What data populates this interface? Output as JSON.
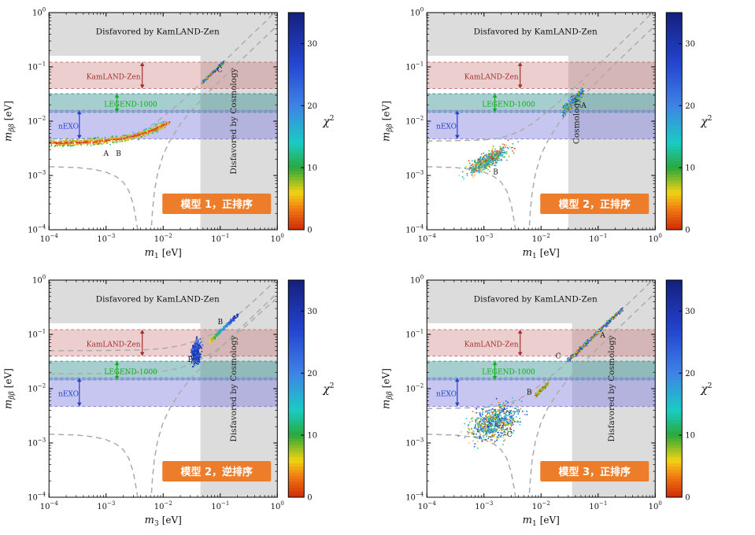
{
  "chart_data": {
    "type": "scatter",
    "description": "2x2 grid of log-log scatter plots of effective Majorana mass vs lightest neutrino mass, colored by chi-squared",
    "shared": {
      "axes": {
        "x_min": 0.0001,
        "x_max": 1,
        "y_min": 0.0001,
        "y_max": 1,
        "x_tick_exponents": [
          -4,
          -3,
          -2,
          -1,
          0
        ],
        "y_tick_exponents": [
          -4,
          -3,
          -2,
          -1,
          0
        ]
      },
      "ylabel": {
        "var": "m",
        "sub": "ββ",
        "unit": "[eV]"
      },
      "top_region": {
        "y_min": 0.16,
        "y_max": 1.0,
        "fill": "#dcdcdc",
        "label": "Disfavored by KamLAND-Zen",
        "label_x": 0.008,
        "label_y": 0.4
      },
      "cosmology_fill": "#dcdcdc",
      "bands": [
        {
          "id": "kamland-zen",
          "label": "KamLAND-Zen",
          "y_min": 0.04,
          "y_max": 0.122,
          "fill": "#c96a6a",
          "fill_opacity": 0.33,
          "edge": "#b96a6a",
          "label_color": "#a03030",
          "label_x": 0.00135,
          "label_y": 0.066,
          "arrow_x": 0.0043
        },
        {
          "id": "legend-1000",
          "label": "LEGEND-1000",
          "y_min": 0.0145,
          "y_max": 0.032,
          "fill": "#2e8b8b",
          "fill_opacity": 0.42,
          "edge": "#2e8b8b",
          "label_color": "#0cae1e",
          "label_x": 0.0027,
          "label_y": 0.0205,
          "arrow_x": 0.00155
        },
        {
          "id": "nexo",
          "label": "nEXO",
          "y_min": 0.0047,
          "y_max": 0.0158,
          "fill": "#8080dd",
          "fill_opacity": 0.45,
          "edge": "#7878cf",
          "label_color": "#2543cc",
          "label_x": 0.00022,
          "label_y": 0.008,
          "arrow_x": 0.00034
        }
      ],
      "curve_style": {
        "color": "#ababab",
        "dash": "7 5",
        "width": 1.5
      },
      "curves_lib": {
        "no_upper": [
          [
            0.0001,
            0.0043
          ],
          [
            0.0003,
            0.00435
          ],
          [
            0.001,
            0.0045
          ],
          [
            0.002,
            0.0049
          ],
          [
            0.004,
            0.0063
          ],
          [
            0.007,
            0.009
          ],
          [
            0.01,
            0.012
          ],
          [
            0.02,
            0.022
          ],
          [
            0.04,
            0.043
          ],
          [
            0.08,
            0.086
          ],
          [
            0.15,
            0.162
          ],
          [
            0.3,
            0.33
          ],
          [
            0.6,
            0.66
          ],
          [
            0.93,
            1.05
          ]
        ],
        "no_funnel_left": [
          [
            0.0001,
            0.00145
          ],
          [
            0.0003,
            0.0014
          ],
          [
            0.0006,
            0.0013
          ],
          [
            0.001,
            0.00115
          ],
          [
            0.0015,
            0.00095
          ],
          [
            0.002,
            0.00075
          ],
          [
            0.0025,
            0.00052
          ],
          [
            0.003,
            0.00029
          ],
          [
            0.0034,
            0.00014
          ],
          [
            0.0037,
            8e-05
          ]
        ],
        "no_funnel_right": [
          [
            0.0061,
            8e-05
          ],
          [
            0.0065,
            0.00022
          ],
          [
            0.007,
            0.0005
          ],
          [
            0.008,
            0.0011
          ],
          [
            0.01,
            0.0024
          ],
          [
            0.013,
            0.0043
          ],
          [
            0.02,
            0.0088
          ],
          [
            0.03,
            0.015
          ],
          [
            0.05,
            0.027
          ],
          [
            0.1,
            0.056
          ],
          [
            0.2,
            0.115
          ],
          [
            0.4,
            0.23
          ],
          [
            1,
            0.58
          ]
        ],
        "io_upper": [
          [
            0.0001,
            0.05
          ],
          [
            0.001,
            0.0505
          ],
          [
            0.005,
            0.052
          ],
          [
            0.01,
            0.055
          ],
          [
            0.02,
            0.062
          ],
          [
            0.04,
            0.077
          ],
          [
            0.08,
            0.106
          ],
          [
            0.15,
            0.172
          ],
          [
            0.3,
            0.325
          ],
          [
            0.6,
            0.63
          ],
          [
            0.95,
            1.02
          ]
        ],
        "io_lower": [
          [
            0.0001,
            0.0188
          ],
          [
            0.001,
            0.019
          ],
          [
            0.005,
            0.0196
          ],
          [
            0.01,
            0.021
          ],
          [
            0.02,
            0.024
          ],
          [
            0.04,
            0.032
          ],
          [
            0.08,
            0.049
          ],
          [
            0.15,
            0.081
          ],
          [
            0.3,
            0.152
          ],
          [
            0.6,
            0.295
          ],
          [
            1,
            0.47
          ]
        ]
      },
      "colorbar": {
        "label": "χ",
        "sup": "2",
        "min": 0,
        "max": 35,
        "ticks": [
          0,
          10,
          20,
          30
        ],
        "stops": [
          [
            0,
            "#cc2b04"
          ],
          [
            3,
            "#ef7012"
          ],
          [
            6,
            "#f2d313"
          ],
          [
            10,
            "#2aa83a"
          ],
          [
            14,
            "#19ccc4"
          ],
          [
            20,
            "#3f83e6"
          ],
          [
            27,
            "#2344cf"
          ],
          [
            35,
            "#15207d"
          ]
        ]
      },
      "badge_color": "#ed7d2a",
      "badge_text_color": "#ffffff"
    },
    "panels": [
      {
        "badge": "模型 1，正排序",
        "x_sub": "1",
        "cosmology": {
          "x_start": 0.045,
          "label": "Disfavored by Cosmology",
          "label_x": 0.19
        },
        "curves": [
          "no_upper",
          "no_funnel_left",
          "no_funnel_right"
        ],
        "clusters": [
          {
            "type": "band",
            "n": 650,
            "seed": 11,
            "x_min": 0.0001,
            "x_max": 0.013,
            "y0": 0.0039,
            "slope": 0.45,
            "spread": 0.032,
            "chi2": [
              0,
              16
            ],
            "mode": "edge"
          },
          {
            "type": "streak",
            "n": 200,
            "seed": 12,
            "x_min": 0.048,
            "x_max": 0.115,
            "k": 1.06,
            "spread": 0.013,
            "chi2": [
              0,
              33
            ],
            "mode": "uniform"
          }
        ],
        "annotations": [
          {
            "text": "A",
            "x": 0.001,
            "y": 0.0023
          },
          {
            "text": "B",
            "x": 0.00165,
            "y": 0.0023
          },
          {
            "text": "C",
            "x": 0.098,
            "y": 0.08
          }
        ]
      },
      {
        "badge": "模型 2，正排序",
        "x_sub": "1",
        "cosmology": {
          "x_start": 0.03,
          "label": "Cosmology",
          "label_x": 0.046
        },
        "curves": [
          "no_upper",
          "no_funnel_left",
          "no_funnel_right"
        ],
        "clusters": [
          {
            "type": "blob",
            "n": 620,
            "seed": 21,
            "cx": -2.93,
            "cy": -2.72,
            "sx": 0.17,
            "sy": 0.07,
            "tilt": 0.55,
            "chi2": [
              0,
              22
            ],
            "mode": "uniform"
          },
          {
            "type": "streak",
            "n": 300,
            "seed": 22,
            "x_min": 0.024,
            "x_max": 0.056,
            "k": 0.62,
            "spread": 0.05,
            "chi2": [
              0,
              28
            ],
            "mode": "uniform"
          }
        ],
        "annotations": [
          {
            "text": "B",
            "x": 0.0016,
            "y": 0.00105
          },
          {
            "text": "A",
            "x": 0.056,
            "y": 0.0175
          }
        ]
      },
      {
        "badge": "模型 2，逆排序",
        "x_sub": "3",
        "cosmology": {
          "x_start": 0.045,
          "label": "Disfavored by Cosmology",
          "label_x": 0.19
        },
        "curves": [
          "io_upper",
          "io_lower",
          "no_funnel_left",
          "no_funnel_right"
        ],
        "clusters": [
          {
            "type": "blob",
            "n": 430,
            "seed": 31,
            "cx": -1.42,
            "cy": -1.33,
            "sx": 0.04,
            "sy": 0.1,
            "tilt": 0.5,
            "chi2": [
              20,
              34
            ],
            "mode": "uniform"
          },
          {
            "type": "streak",
            "n": 270,
            "seed": 32,
            "x_min": 0.065,
            "x_max": 0.205,
            "k": 1.13,
            "spread": 0.018,
            "chi2": [
              6,
              32
            ],
            "mode": "gradient"
          }
        ],
        "annotations": [
          {
            "text": "B",
            "x": 0.03,
            "y": 0.031
          },
          {
            "text": "B",
            "x": 0.1,
            "y": 0.155
          }
        ]
      },
      {
        "badge": "模型 3，正排序",
        "x_sub": "1",
        "cosmology": {
          "x_start": 0.035,
          "label": "Disfavored by Cosmology",
          "label_x": 0.19
        },
        "curves": [
          "no_upper",
          "no_funnel_left",
          "no_funnel_right"
        ],
        "clusters": [
          {
            "type": "blob",
            "n": 780,
            "seed": 41,
            "cx": -2.82,
            "cy": -2.62,
            "sx": 0.21,
            "sy": 0.15,
            "tilt": 0.3,
            "chi2": [
              2,
              30
            ],
            "mode": "uniform"
          },
          {
            "type": "streak",
            "n": 120,
            "seed": 42,
            "x_min": 0.008,
            "x_max": 0.0135,
            "k": 0.93,
            "spread": 0.02,
            "chi2": [
              0,
              12
            ],
            "mode": "uniform"
          },
          {
            "type": "streak",
            "n": 400,
            "seed": 43,
            "x_min": 0.029,
            "x_max": 0.27,
            "k": 1.1,
            "spread": 0.02,
            "chi2": [
              0,
              32
            ],
            "mode": "uniform"
          }
        ],
        "annotations": [
          {
            "text": "C",
            "x": 0.0028,
            "y": 0.0013
          },
          {
            "text": "B",
            "x": 0.0062,
            "y": 0.0078
          },
          {
            "text": "C",
            "x": 0.02,
            "y": 0.036
          },
          {
            "text": "A",
            "x": 0.12,
            "y": 0.088
          }
        ]
      }
    ]
  }
}
